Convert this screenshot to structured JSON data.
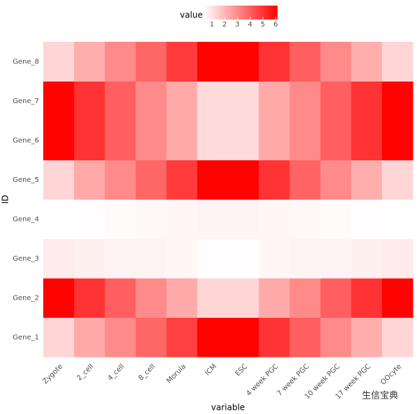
{
  "chart_data": {
    "type": "heatmap",
    "x_label": "variable",
    "y_label": "ID",
    "legend_title": "value",
    "columns": [
      "Zygote",
      "2_cell",
      "4_cell",
      "8_cell",
      "Morula",
      "ICM",
      "ESC",
      "4 week PGC",
      "7 week PGC",
      "10 week PGC",
      "17 week PGC",
      "OOcyte"
    ],
    "rows": [
      "Gene_1",
      "Gene_2",
      "Gene_3",
      "Gene_4",
      "Gene_5",
      "Gene_6",
      "Gene_7",
      "Gene_8"
    ],
    "values": [
      [
        1.3,
        2.3,
        3,
        3.8,
        4.7,
        6.1,
        6.1,
        5,
        4,
        3,
        2.2,
        1.3
      ],
      [
        6.1,
        5,
        4,
        3,
        2.3,
        1.3,
        1.3,
        2.3,
        3,
        4,
        5,
        6.1
      ],
      [
        0.8,
        0.7,
        0.65,
        0.6,
        0.55,
        0.4,
        0.4,
        0.55,
        0.6,
        0.65,
        0.7,
        0.8
      ],
      [
        0.35,
        0.4,
        0.45,
        0.5,
        0.55,
        0.6,
        0.6,
        0.55,
        0.5,
        0.45,
        0.4,
        0.35
      ],
      [
        1.3,
        2.3,
        3,
        3.8,
        4.8,
        6.1,
        6.1,
        5,
        3.9,
        3,
        2.2,
        1.3
      ],
      [
        6.1,
        5,
        4,
        3,
        2.3,
        1.2,
        1.2,
        2.3,
        3,
        4,
        5,
        6.1
      ],
      [
        6.1,
        5,
        4,
        3,
        2.3,
        1.2,
        1.2,
        2.3,
        3,
        4,
        5,
        6.1
      ],
      [
        1.3,
        2.2,
        3,
        3.8,
        4.8,
        6.1,
        6.1,
        5,
        4,
        3,
        2.2,
        1.3
      ]
    ],
    "color_low": "#ffffff",
    "color_high": "#ff0000",
    "colorbar_lim": [
      0.35,
      6.15
    ],
    "colorbar_ticks": [
      1,
      2,
      3,
      4,
      5,
      6
    ],
    "watermark": "生信宝典"
  }
}
